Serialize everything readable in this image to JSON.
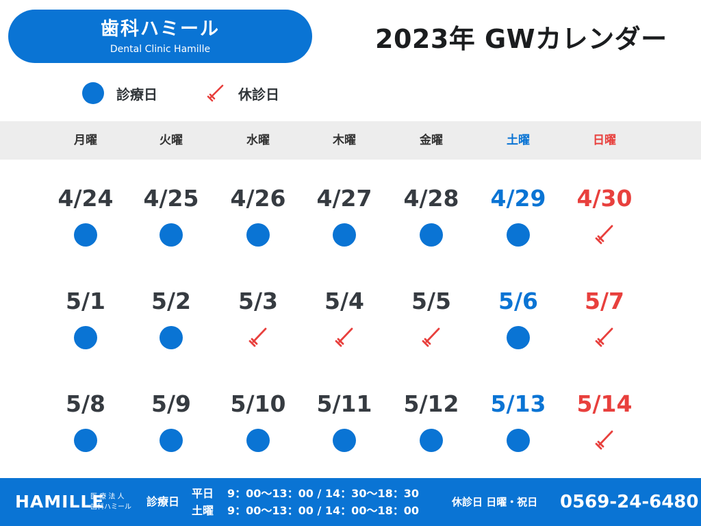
{
  "logo": {
    "name": "歯科ハミール",
    "sub": "Dental Clinic Hamille"
  },
  "title": "2023年 GWカレンダー",
  "legend": {
    "open_label": "診療日",
    "closed_label": "休診日"
  },
  "colors": {
    "brand_blue": "#0a74d4",
    "sunday_red": "#e8403d",
    "header_gray": "#ededed",
    "text_dark": "#363b41"
  },
  "icons": {
    "open": "blue-dot-icon",
    "closed": "toothbrush-icon"
  },
  "weekdays": [
    {
      "label": "月曜",
      "type": "weekday"
    },
    {
      "label": "火曜",
      "type": "weekday"
    },
    {
      "label": "水曜",
      "type": "weekday"
    },
    {
      "label": "木曜",
      "type": "weekday"
    },
    {
      "label": "金曜",
      "type": "weekday"
    },
    {
      "label": "土曜",
      "type": "sat"
    },
    {
      "label": "日曜",
      "type": "sun"
    }
  ],
  "weeks": [
    [
      {
        "date": "4/24",
        "status": "open"
      },
      {
        "date": "4/25",
        "status": "open"
      },
      {
        "date": "4/26",
        "status": "open"
      },
      {
        "date": "4/27",
        "status": "open"
      },
      {
        "date": "4/28",
        "status": "open"
      },
      {
        "date": "4/29",
        "status": "open"
      },
      {
        "date": "4/30",
        "status": "closed"
      }
    ],
    [
      {
        "date": "5/1",
        "status": "open"
      },
      {
        "date": "5/2",
        "status": "open"
      },
      {
        "date": "5/3",
        "status": "closed"
      },
      {
        "date": "5/4",
        "status": "closed"
      },
      {
        "date": "5/5",
        "status": "closed"
      },
      {
        "date": "5/6",
        "status": "open"
      },
      {
        "date": "5/7",
        "status": "closed"
      }
    ],
    [
      {
        "date": "5/8",
        "status": "open"
      },
      {
        "date": "5/9",
        "status": "open"
      },
      {
        "date": "5/10",
        "status": "open"
      },
      {
        "date": "5/11",
        "status": "open"
      },
      {
        "date": "5/12",
        "status": "open"
      },
      {
        "date": "5/13",
        "status": "open"
      },
      {
        "date": "5/14",
        "status": "closed"
      }
    ]
  ],
  "footer": {
    "brand": "HAMILLE",
    "corp_line1": "医 療 法 人",
    "corp_line2": "歯科ハミール",
    "hours_label": "診療日",
    "weekday_label": "平日",
    "weekday_hours": "9：00〜13：00 / 14：30〜18：30",
    "saturday_label": "土曜",
    "saturday_hours": "9：00〜13：00 / 14：00〜18：00",
    "holiday": "休診日  日曜・祝日",
    "phone": "0569-24-6480"
  }
}
